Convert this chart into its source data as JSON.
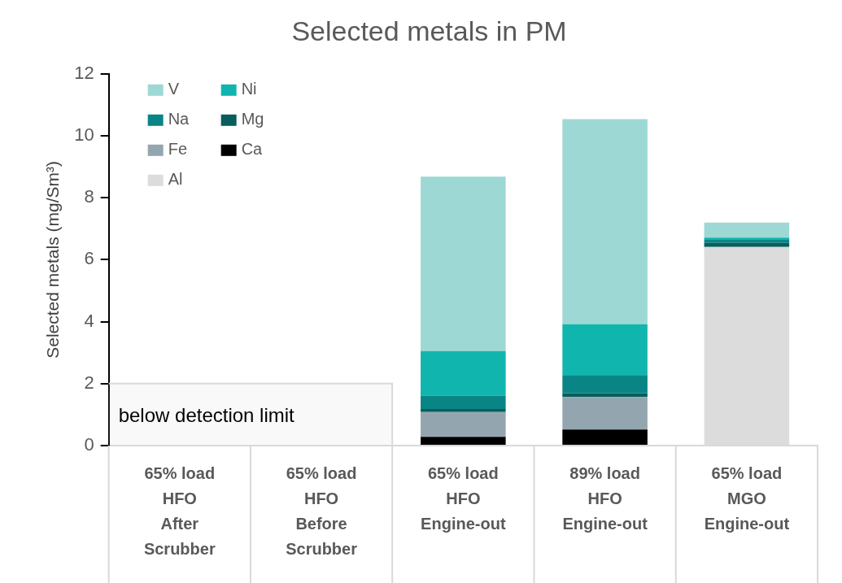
{
  "chart_data": {
    "type": "bar",
    "stacked": true,
    "title": "Selected metals in PM",
    "ylabel": "Selected metals (mg/Sm³)",
    "categories": [
      "65% load\nHFO\nAfter\nScrubber",
      "65% load\nHFO\nBefore\nScrubber",
      "65% load\nHFO\nEngine-out",
      "89% load\nHFO\nEngine-out",
      "65% load\nMGO\nEngine-out"
    ],
    "series": [
      {
        "name": "Al",
        "color": "#dcdcdc",
        "values": [
          0,
          0,
          0,
          0,
          6.41
        ]
      },
      {
        "name": "Ca",
        "color": "#000000",
        "values": [
          0,
          0,
          0.28,
          0.52,
          0
        ]
      },
      {
        "name": "Fe",
        "color": "#93a6b0",
        "values": [
          0,
          0,
          0.8,
          1.05,
          0
        ]
      },
      {
        "name": "Mg",
        "color": "#075e5c",
        "values": [
          0,
          0,
          0.1,
          0.12,
          0.13
        ]
      },
      {
        "name": "Na",
        "color": "#0a8585",
        "values": [
          0,
          0,
          0.43,
          0.59,
          0.1
        ]
      },
      {
        "name": "Ni",
        "color": "#10b5ae",
        "values": [
          0,
          0,
          1.44,
          1.64,
          0.07
        ]
      },
      {
        "name": "V",
        "color": "#9dd8d4",
        "values": [
          0,
          0,
          5.63,
          6.62,
          0.49
        ]
      }
    ],
    "ylim": [
      0,
      12
    ],
    "yticks": [
      0,
      2,
      4,
      6,
      8,
      10,
      12
    ],
    "grid": false,
    "legend": "top left",
    "bands": [
      {
        "axis": "y",
        "from": 0,
        "to": 2,
        "label": "below detection limit",
        "color": "#d9d9d9"
      }
    ]
  }
}
